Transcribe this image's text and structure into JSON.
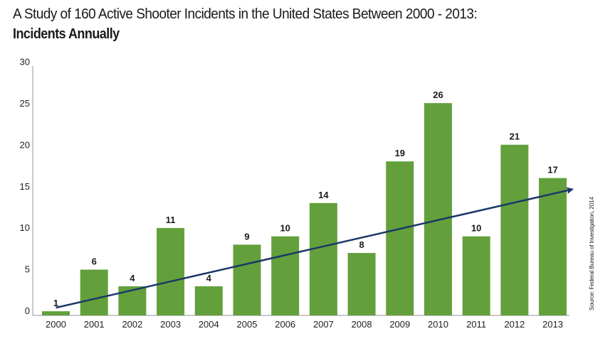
{
  "chart_data": {
    "type": "bar",
    "title": "A Study of 160 Active Shooter Incidents in the United States Between 2000 - 2013:",
    "subtitle": "Incidents Annually",
    "xlabel": "",
    "ylabel": "",
    "ylim": [
      0,
      30
    ],
    "yticks": [
      "0",
      "5",
      "10",
      "15",
      "20",
      "25",
      "30"
    ],
    "grid": false,
    "legend": "none",
    "categories": [
      "2000",
      "2001",
      "2002",
      "2003",
      "2004",
      "2005",
      "2006",
      "2007",
      "2008",
      "2009",
      "2010",
      "2011",
      "2012",
      "2013"
    ],
    "values": [
      1,
      6,
      4,
      11,
      4,
      9,
      10,
      14,
      8,
      19,
      26,
      10,
      21,
      17
    ],
    "data_labels": [
      "1",
      "6",
      "4",
      "11",
      "4",
      "9",
      "10",
      "14",
      "8",
      "19",
      "26",
      "10",
      "21",
      "17"
    ],
    "trendline": {
      "type": "linear",
      "style": "arrow",
      "start_category": "2000",
      "end_category": "2013",
      "start_value": 1.0,
      "end_value": 16.5
    },
    "colors": {
      "bar": "#63a03b",
      "trendline": "#1b3768",
      "axis": "#b8b8b8",
      "text": "#1a1a1a"
    },
    "source": "Source: Federal Bureau of Investigation, 2014"
  }
}
